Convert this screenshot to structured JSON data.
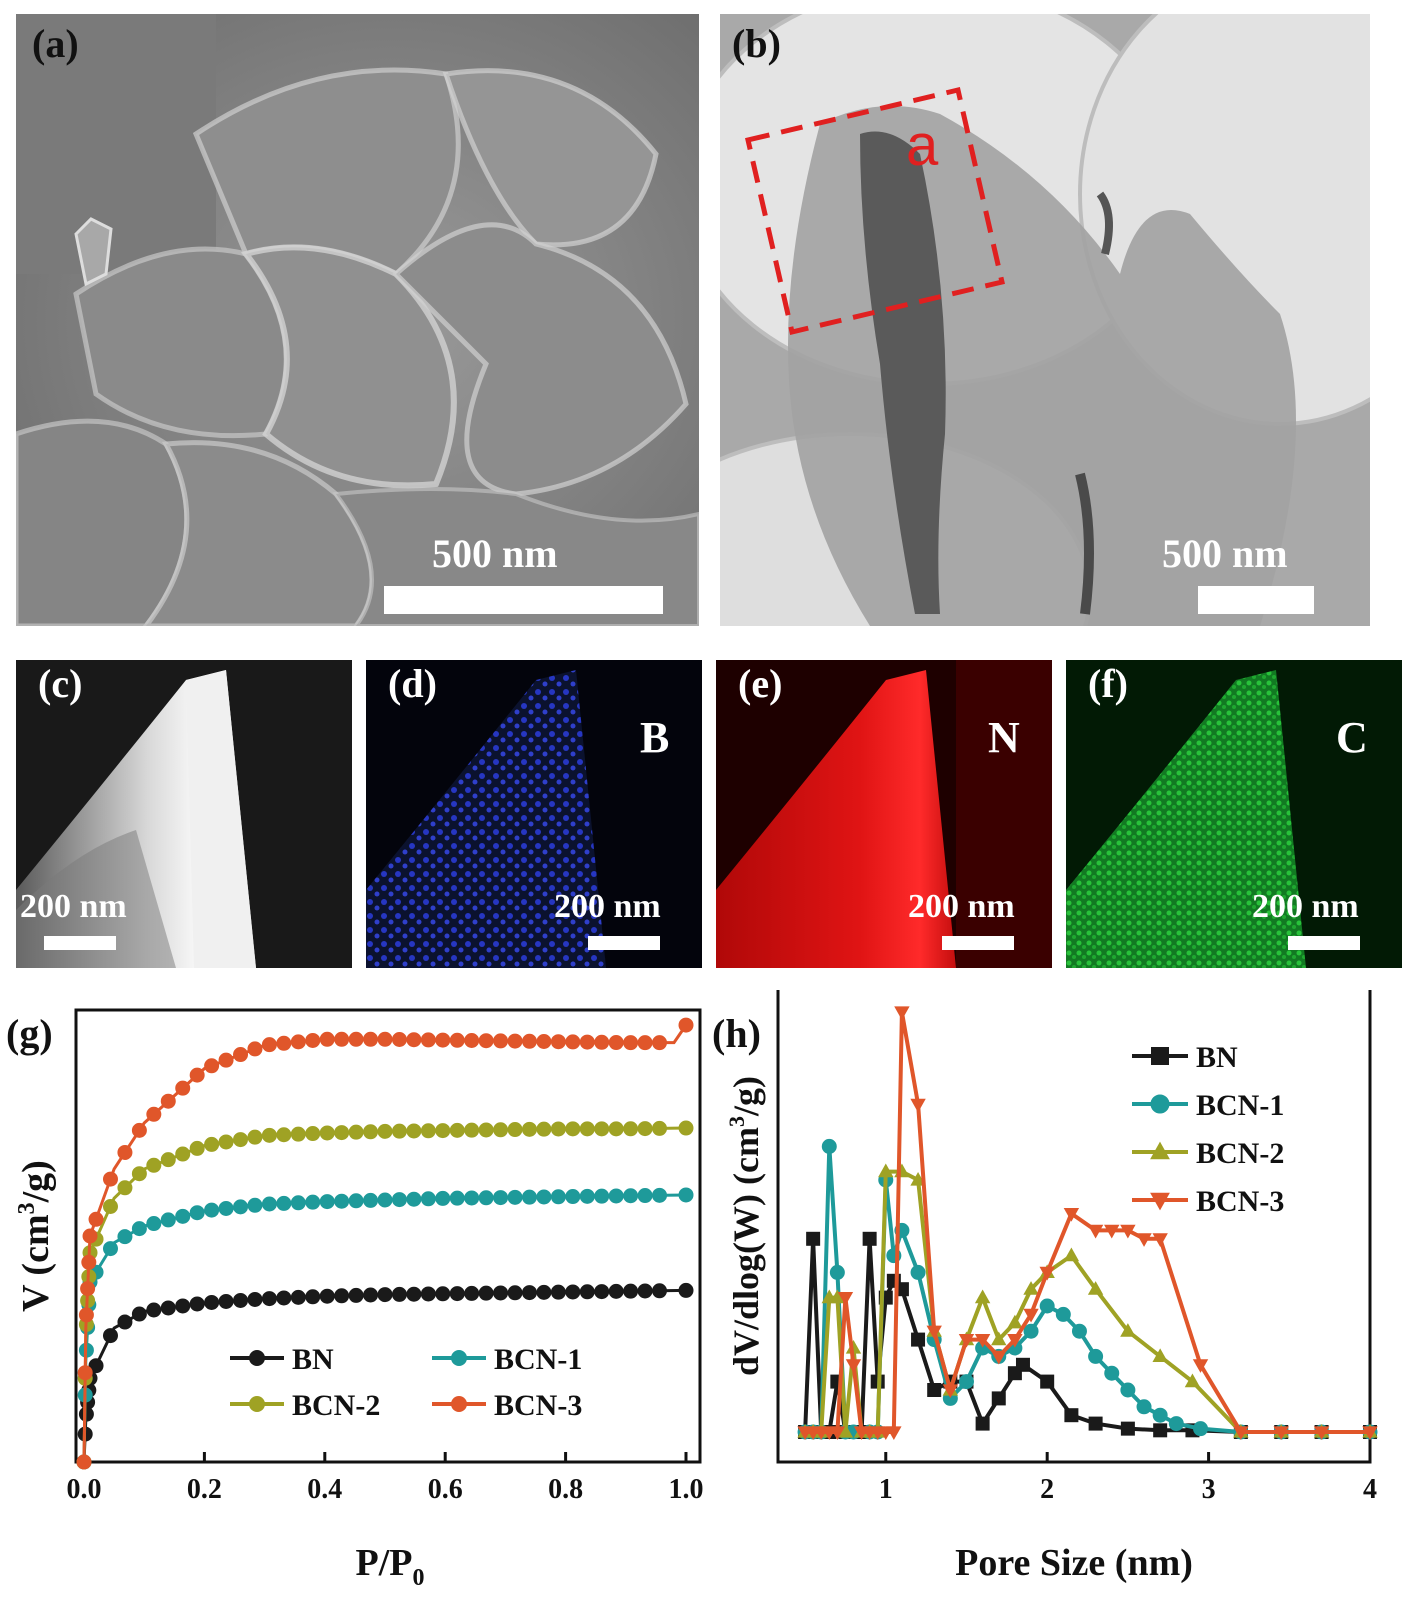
{
  "panels": {
    "a": {
      "label": "(a)",
      "scale": "500 nm"
    },
    "b": {
      "label": "(b)",
      "scale": "500 nm",
      "roi_label": "a"
    },
    "c": {
      "label": "(c)",
      "scale": "200 nm"
    },
    "d": {
      "label": "(d)",
      "scale": "200 nm",
      "element": "B"
    },
    "e": {
      "label": "(e)",
      "scale": "200 nm",
      "element": "N"
    },
    "f": {
      "label": "(f)",
      "scale": "200 nm",
      "element": "C"
    },
    "g": {
      "label": "(g)"
    },
    "h": {
      "label": "(h)"
    }
  },
  "colors": {
    "BN": "#1a1a1a",
    "BCN-1": "#1e9a9a",
    "BCN-2": "#9fa224",
    "BCN-3": "#e0562a",
    "roi": "#e02020",
    "blue_map": "#2233cc",
    "red_map": "#e01010",
    "green_map": "#22bb33"
  },
  "chart_data": [
    {
      "type": "line",
      "panel": "(g)",
      "xlabel": "P/P",
      "xlabel_sub": "0",
      "ylabel": "V (cm",
      "ylabel_sup": "3",
      "ylabel_end": "/g)",
      "xlim": [
        0,
        1.0
      ],
      "xticks": [
        "0.0",
        "0.2",
        "0.4",
        "0.6",
        "0.8",
        "1.0"
      ],
      "legend_placement": "bottom",
      "markers": "circle",
      "series": [
        {
          "name": "BN",
          "x": [
            0.0,
            0.003,
            0.01,
            0.05,
            0.1,
            0.2,
            0.3,
            0.4,
            0.5,
            0.6,
            0.7,
            0.8,
            0.9,
            1.0
          ],
          "y": [
            0,
            50,
            100,
            160,
            180,
            190,
            195,
            198,
            200,
            201,
            202,
            203,
            204,
            205
          ]
        },
        {
          "name": "BCN-1",
          "x": [
            0.0,
            0.003,
            0.01,
            0.05,
            0.1,
            0.2,
            0.3,
            0.4,
            0.5,
            0.6,
            0.7,
            0.8,
            0.9,
            1.0
          ],
          "y": [
            0,
            120,
            215,
            262,
            282,
            300,
            308,
            311,
            313,
            315,
            316,
            317,
            318,
            319
          ]
        },
        {
          "name": "BCN-2",
          "x": [
            0.0,
            0.003,
            0.01,
            0.05,
            0.1,
            0.2,
            0.3,
            0.4,
            0.5,
            0.6,
            0.7,
            0.8,
            0.9,
            1.0
          ],
          "y": [
            0,
            150,
            250,
            315,
            350,
            378,
            390,
            393,
            395,
            396,
            397,
            398,
            398,
            399
          ]
        },
        {
          "name": "BCN-3",
          "x": [
            0.0,
            0.003,
            0.01,
            0.05,
            0.1,
            0.2,
            0.3,
            0.4,
            0.5,
            0.6,
            0.7,
            0.8,
            0.9,
            0.98,
            1.0
          ],
          "y": [
            0,
            160,
            270,
            350,
            405,
            470,
            498,
            505,
            505,
            504,
            503,
            502,
            501,
            501,
            522
          ]
        }
      ]
    },
    {
      "type": "line",
      "panel": "(h)",
      "xlabel": "Pore Size (nm)",
      "ylabel": "dV/dlog(W) (cm",
      "ylabel_sup": "3",
      "ylabel_end": "/g)",
      "xlim": [
        0.45,
        4
      ],
      "xticks": [
        "1",
        "2",
        "3",
        "4"
      ],
      "legend_placement": "top-right",
      "series": [
        {
          "name": "BN",
          "marker": "square",
          "x": [
            0.5,
            0.55,
            0.6,
            0.65,
            0.7,
            0.75,
            0.8,
            0.85,
            0.9,
            0.95,
            1.0,
            1.05,
            1.1,
            1.2,
            1.3,
            1.4,
            1.5,
            1.6,
            1.7,
            1.8,
            1.85,
            2.0,
            2.15,
            2.3,
            2.5,
            2.7,
            2.9,
            3.2,
            3.45,
            3.7,
            4.0
          ],
          "y": [
            0.0,
            1.15,
            0.0,
            0.0,
            0.3,
            0.0,
            0.0,
            0.0,
            1.15,
            0.3,
            0.8,
            0.9,
            0.85,
            0.55,
            0.25,
            0.3,
            0.3,
            0.05,
            0.2,
            0.35,
            0.4,
            0.3,
            0.1,
            0.05,
            0.02,
            0.01,
            0.01,
            0.0,
            0.0,
            0.0,
            0.0
          ]
        },
        {
          "name": "BCN-1",
          "marker": "circle",
          "x": [
            0.5,
            0.55,
            0.6,
            0.65,
            0.7,
            0.75,
            0.8,
            0.9,
            0.95,
            1.0,
            1.05,
            1.1,
            1.2,
            1.3,
            1.4,
            1.5,
            1.6,
            1.7,
            1.8,
            1.9,
            2.0,
            2.1,
            2.2,
            2.3,
            2.4,
            2.5,
            2.6,
            2.7,
            2.8,
            2.95,
            3.2,
            3.45,
            3.7,
            4.0
          ],
          "y": [
            0.0,
            0.0,
            0.0,
            1.7,
            0.95,
            0.0,
            0.0,
            0.0,
            0.0,
            1.5,
            1.05,
            1.2,
            0.95,
            0.55,
            0.2,
            0.3,
            0.5,
            0.45,
            0.5,
            0.6,
            0.75,
            0.7,
            0.6,
            0.45,
            0.35,
            0.25,
            0.15,
            0.1,
            0.05,
            0.02,
            0.0,
            0.0,
            0.0,
            0.0
          ]
        },
        {
          "name": "BCN-2",
          "marker": "triangle-up",
          "x": [
            0.5,
            0.55,
            0.6,
            0.65,
            0.7,
            0.75,
            0.8,
            0.85,
            0.9,
            0.95,
            1.0,
            1.1,
            1.2,
            1.3,
            1.4,
            1.5,
            1.6,
            1.7,
            1.8,
            1.9,
            2.0,
            2.15,
            2.3,
            2.5,
            2.7,
            2.9,
            3.2,
            3.45,
            3.7,
            4.0
          ],
          "y": [
            0.0,
            0.0,
            0.0,
            0.8,
            0.8,
            0.0,
            0.5,
            0.0,
            0.0,
            0.0,
            1.55,
            1.55,
            1.5,
            0.6,
            0.25,
            0.55,
            0.8,
            0.55,
            0.65,
            0.85,
            0.95,
            1.05,
            0.85,
            0.6,
            0.45,
            0.3,
            0.0,
            0.0,
            0.0,
            0.0
          ]
        },
        {
          "name": "BCN-3",
          "marker": "triangle-down",
          "x": [
            0.5,
            0.55,
            0.6,
            0.65,
            0.7,
            0.75,
            0.8,
            0.85,
            0.9,
            0.95,
            1.0,
            1.05,
            1.1,
            1.2,
            1.3,
            1.4,
            1.5,
            1.6,
            1.7,
            1.8,
            1.9,
            2.0,
            2.15,
            2.3,
            2.4,
            2.5,
            2.6,
            2.7,
            2.95,
            3.2,
            3.45,
            3.7,
            4.0
          ],
          "y": [
            0.0,
            0.0,
            0.0,
            0.0,
            0.0,
            0.8,
            0.4,
            0.0,
            0.0,
            0.0,
            0.0,
            0.0,
            2.5,
            1.95,
            0.6,
            0.25,
            0.55,
            0.55,
            0.45,
            0.55,
            0.7,
            0.95,
            1.3,
            1.2,
            1.2,
            1.2,
            1.15,
            1.15,
            0.4,
            0.0,
            0.0,
            0.0,
            0.0
          ]
        }
      ]
    }
  ]
}
